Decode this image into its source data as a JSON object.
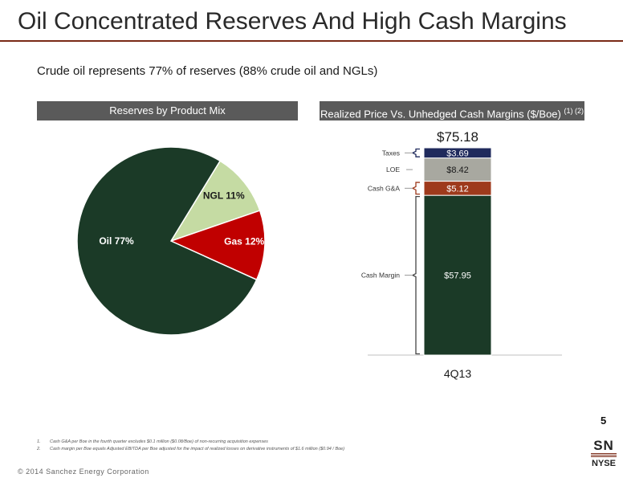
{
  "page": {
    "title": "Oil Concentrated Reserves And High Cash Margins",
    "subtitle": "Crude oil represents 77% of reserves (88% crude oil and NGLs)",
    "left_header": "Reserves by Product Mix",
    "right_header": "Realized Price Vs. Unhedged Cash Margins ($/Boe)",
    "right_header_sup": "(1) (2)",
    "footnotes": [
      {
        "num": "1.",
        "text": "Cash G&A per Boe in the fourth quarter excludes $0.1 million ($0.08/Boe) of non-recurring acquisition expenses"
      },
      {
        "num": "2.",
        "text": "Cash margin per Boe equals Adjusted EBITDA per Boe adjusted for the impact of realized losses on derivative instruments of $1.6 million ($0.94 / Boe)"
      }
    ],
    "copyright": "© 2014 Sanchez Energy Corporation",
    "page_number": "5",
    "logo": {
      "top": "SN",
      "bottom": "NYSE"
    }
  },
  "colors": {
    "oil": "#1b3a27",
    "ngl": "#c5dba3",
    "gas": "#c00000",
    "taxes": "#1f2a5c",
    "loe": "#a8a8a0",
    "ga": "#9e3a1c",
    "margin": "#1b3a27",
    "header": "#5a5a5a",
    "accent": "#7a2a16"
  },
  "chart_data": [
    {
      "type": "pie",
      "title": "Reserves by Product Mix",
      "slices": [
        {
          "name": "Oil",
          "value": 77,
          "label": "Oil 77%"
        },
        {
          "name": "NGL",
          "value": 11,
          "label": "NGL 11%"
        },
        {
          "name": "Gas",
          "value": 12,
          "label": "Gas 12%"
        }
      ]
    },
    {
      "type": "bar",
      "stacked": true,
      "title": "Realized Price Vs. Unhedged Cash Margins ($/Boe)",
      "categories": [
        "4Q13"
      ],
      "total_label": "$75.18",
      "total": 75.18,
      "series": [
        {
          "name": "Cash Margin",
          "values": [
            57.95
          ],
          "label": "$57.95"
        },
        {
          "name": "Cash G&A",
          "values": [
            5.12
          ],
          "label": "$5.12"
        },
        {
          "name": "LOE",
          "values": [
            8.42
          ],
          "label": "$8.42"
        },
        {
          "name": "Taxes",
          "values": [
            3.69
          ],
          "label": "$3.69"
        }
      ]
    }
  ]
}
